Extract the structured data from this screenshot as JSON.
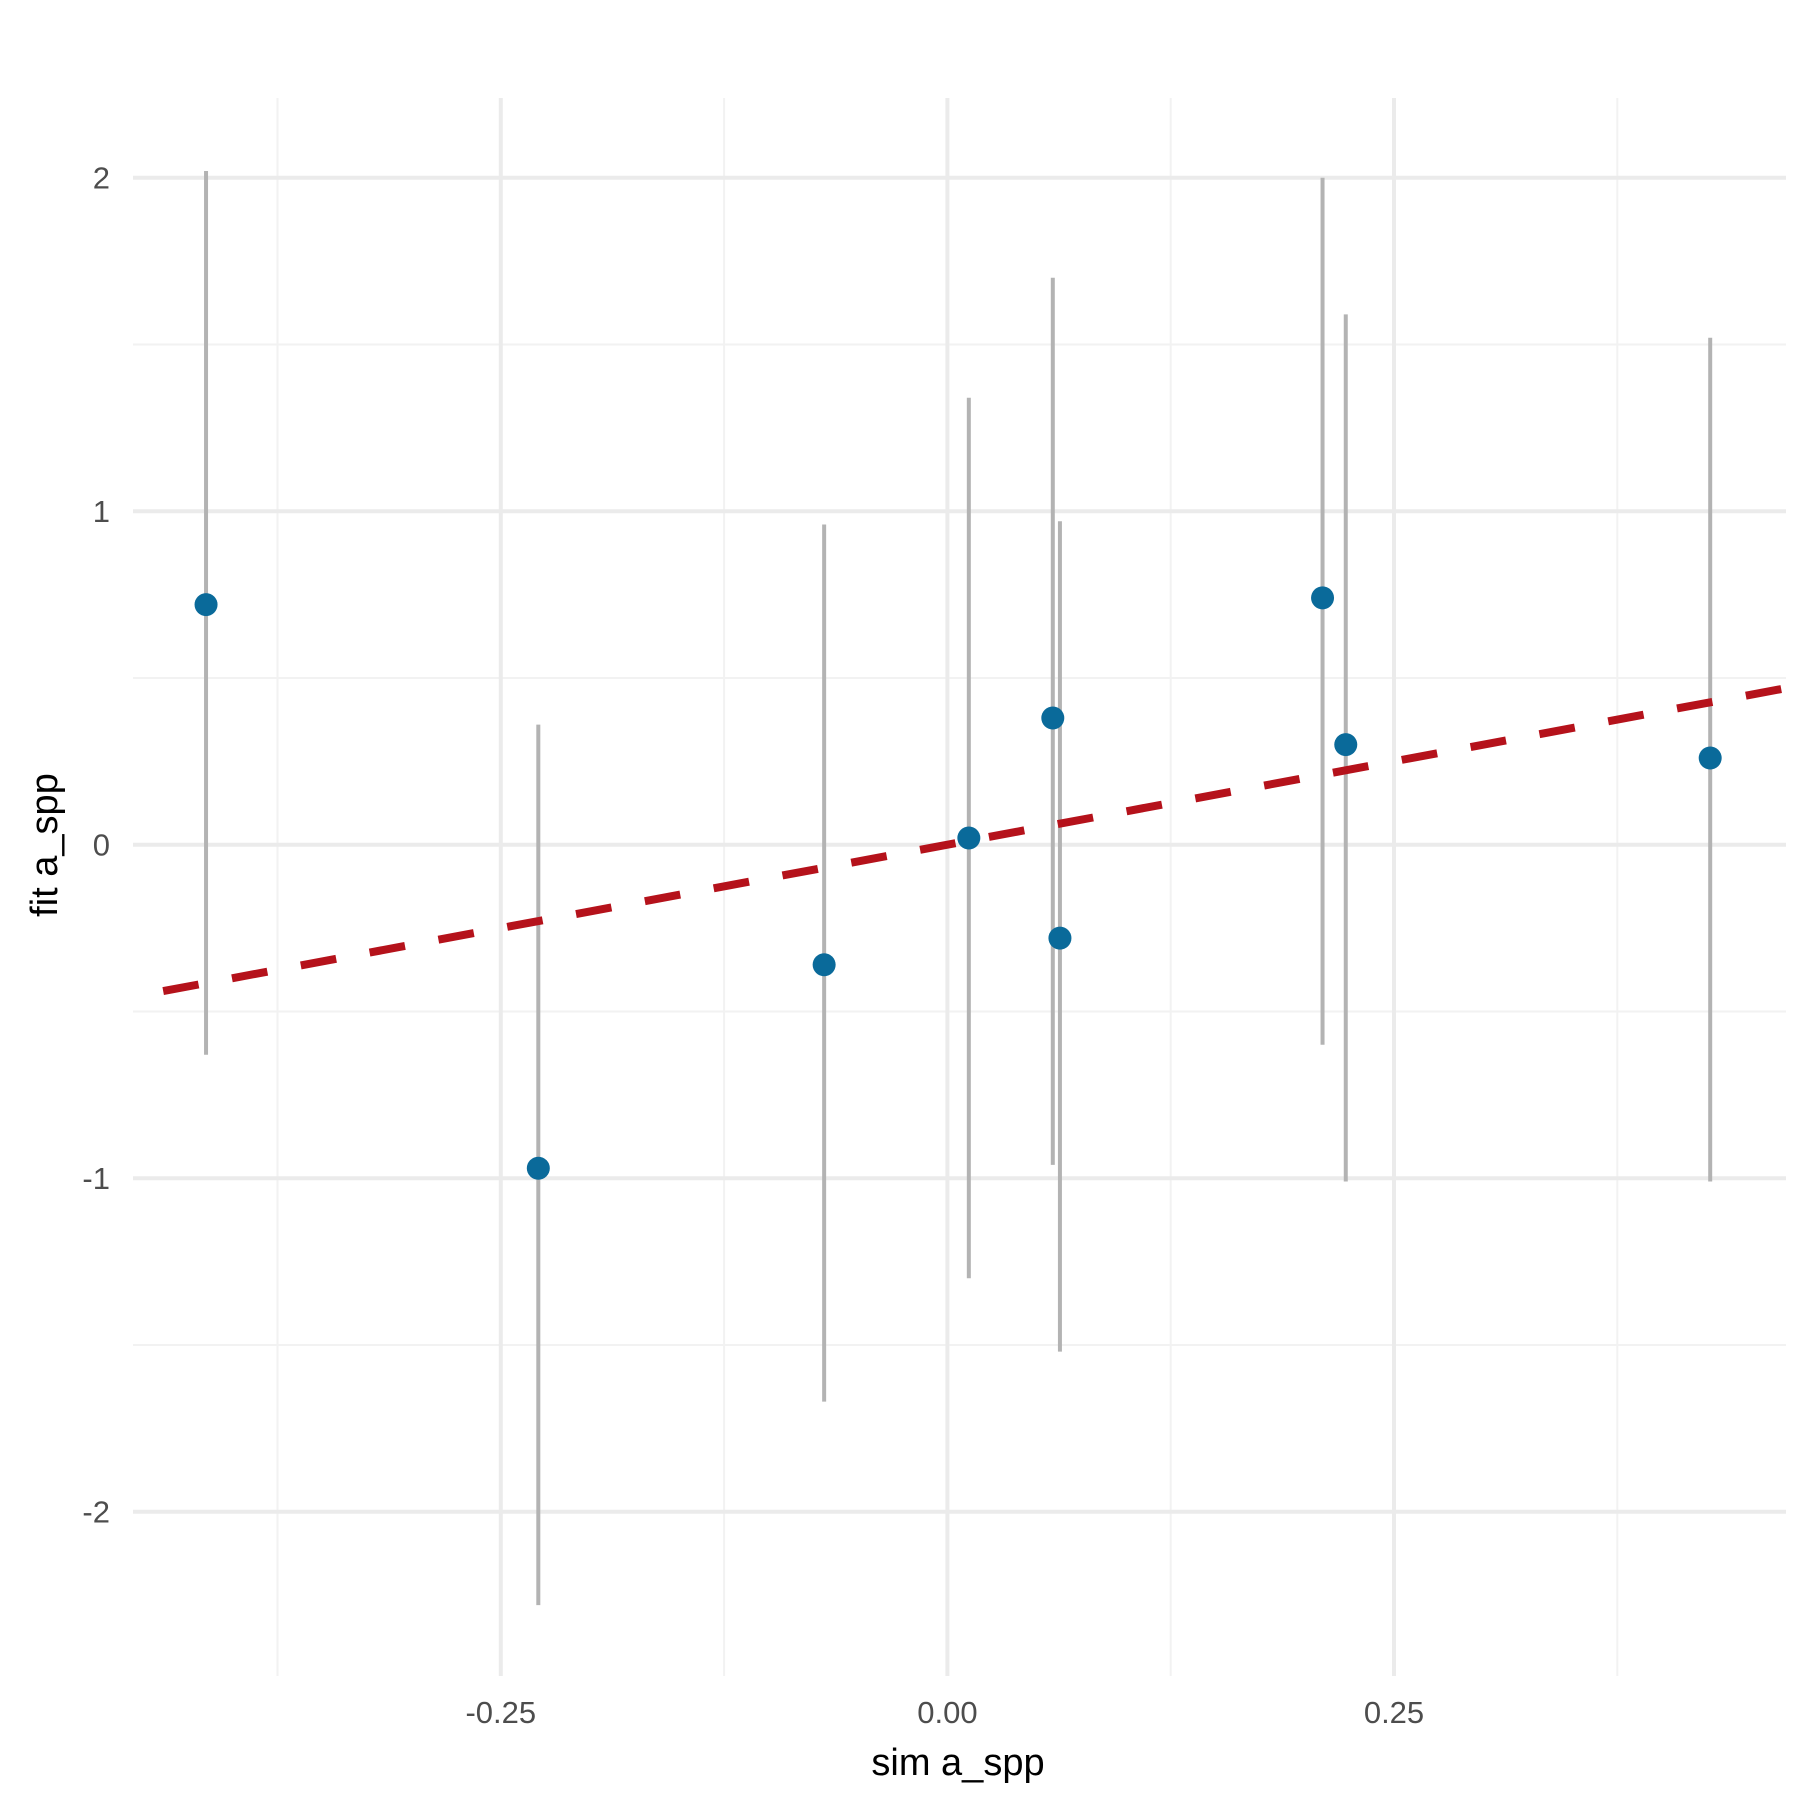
{
  "chart_data": {
    "type": "scatter",
    "title": "",
    "xlabel": "sim a_spp",
    "ylabel": "fit a_spp",
    "xlim": [
      -0.456,
      0.47
    ],
    "ylim": [
      -2.49,
      2.24
    ],
    "x_ticks": [
      -0.25,
      0.0,
      0.25
    ],
    "x_tick_labels": [
      "-0.25",
      "0.00",
      "0.25"
    ],
    "x_minor_gridlines": [
      -0.375,
      -0.125,
      0.125,
      0.375
    ],
    "y_ticks": [
      -2,
      -1,
      0,
      1,
      2
    ],
    "y_tick_labels": [
      "-2",
      "-1",
      "0",
      "1",
      "2"
    ],
    "y_minor_gridlines": [
      -1.5,
      -0.5,
      0.5,
      1.5
    ],
    "grid": true,
    "legend": "none",
    "series": [
      {
        "name": "posterior estimates",
        "type": "pointrange",
        "color": "#0a6a9a",
        "interval_color": "#b3b3b3",
        "points": [
          {
            "x": -0.415,
            "y": 0.72,
            "lower": -0.63,
            "upper": 2.02
          },
          {
            "x": -0.229,
            "y": -0.97,
            "lower": -2.28,
            "upper": 0.36
          },
          {
            "x": -0.069,
            "y": -0.36,
            "lower": -1.67,
            "upper": 0.96
          },
          {
            "x": 0.012,
            "y": 0.02,
            "lower": -1.3,
            "upper": 1.34
          },
          {
            "x": 0.059,
            "y": 0.38,
            "lower": -0.96,
            "upper": 1.7
          },
          {
            "x": 0.063,
            "y": -0.28,
            "lower": -1.52,
            "upper": 0.97
          },
          {
            "x": 0.21,
            "y": 0.74,
            "lower": -0.6,
            "upper": 2.0
          },
          {
            "x": 0.223,
            "y": 0.3,
            "lower": -1.01,
            "upper": 1.59
          },
          {
            "x": 0.427,
            "y": 0.26,
            "lower": -1.01,
            "upper": 1.52
          }
        ]
      },
      {
        "name": "1:1 reference line",
        "type": "line",
        "style": "dashed",
        "color": "#b5121b",
        "slope": 1,
        "intercept": 0
      }
    ]
  },
  "colors": {
    "background": "#ffffff",
    "grid_major": "#ebebeb",
    "grid_minor": "#f2f2f2",
    "point": "#0a6a9a",
    "interval": "#b3b3b3",
    "reference_line": "#b5121b",
    "tick_text": "#4d4d4d"
  }
}
